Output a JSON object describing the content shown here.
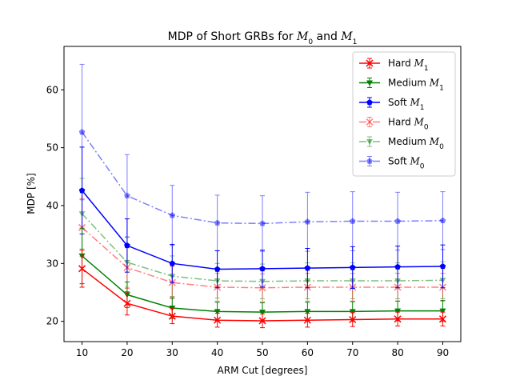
{
  "chart_data": {
    "type": "line",
    "title": {
      "text": "MDP of Short GRBs for ",
      "m0": "M",
      "m0_sub": "0",
      "and": " and ",
      "m1": "M",
      "m1_sub": "1"
    },
    "xlabel": "ARM Cut [degrees]",
    "ylabel": "MDP [%]",
    "xlim": [
      6,
      94
    ],
    "ylim": [
      16.5,
      67.5
    ],
    "xticks": [
      10,
      20,
      30,
      40,
      50,
      60,
      70,
      80,
      90
    ],
    "yticks": [
      20,
      30,
      40,
      50,
      60
    ],
    "grid": false,
    "legend_position": "upper right",
    "x": [
      10,
      20,
      30,
      40,
      50,
      60,
      70,
      80,
      90
    ],
    "series": [
      {
        "name": "Hard ",
        "name_var": "M",
        "name_sub": "1",
        "color": "#ff0000",
        "linestyle": "solid",
        "alpha": 1.0,
        "marker": "x",
        "values": [
          29.1,
          23.1,
          20.9,
          20.2,
          20.1,
          20.2,
          20.3,
          20.4,
          20.4
        ],
        "errors": [
          3.2,
          2.0,
          1.3,
          1.2,
          1.2,
          1.2,
          1.2,
          1.2,
          1.2
        ]
      },
      {
        "name": "Medium ",
        "name_var": "M",
        "name_sub": "1",
        "color": "#008000",
        "linestyle": "solid",
        "alpha": 1.0,
        "marker": "triangle",
        "values": [
          31.3,
          24.6,
          22.3,
          21.7,
          21.6,
          21.7,
          21.7,
          21.8,
          21.8
        ],
        "errors": [
          4.8,
          2.2,
          1.8,
          1.6,
          1.6,
          1.6,
          1.7,
          1.7,
          1.8
        ]
      },
      {
        "name": "Soft ",
        "name_var": "M",
        "name_sub": "1",
        "color": "#0000ff",
        "linestyle": "solid",
        "alpha": 1.0,
        "marker": "pentagon",
        "values": [
          42.6,
          33.1,
          30.0,
          29.0,
          29.1,
          29.2,
          29.3,
          29.4,
          29.5
        ],
        "errors": [
          7.5,
          4.6,
          3.3,
          3.2,
          3.2,
          3.4,
          3.6,
          3.6,
          3.7
        ]
      },
      {
        "name": "Hard ",
        "name_var": "M",
        "name_sub": "0",
        "color": "#ff0000",
        "linestyle": "dashdot",
        "alpha": 0.5,
        "marker": "x",
        "values": [
          36.2,
          29.3,
          26.7,
          25.9,
          25.8,
          25.9,
          25.9,
          25.9,
          25.9
        ],
        "errors": [
          5.0,
          3.6,
          2.8,
          2.4,
          2.4,
          2.4,
          2.4,
          2.4,
          2.4
        ]
      },
      {
        "name": "Medium ",
        "name_var": "M",
        "name_sub": "0",
        "color": "#008000",
        "linestyle": "dashdot",
        "alpha": 0.5,
        "marker": "triangle",
        "values": [
          38.6,
          30.2,
          27.8,
          27.0,
          26.9,
          27.0,
          27.0,
          27.0,
          27.1
        ],
        "errors": [
          6.1,
          4.3,
          3.5,
          3.0,
          3.0,
          3.1,
          3.1,
          3.1,
          3.2
        ]
      },
      {
        "name": "Soft ",
        "name_var": "M",
        "name_sub": "0",
        "color": "#0000ff",
        "linestyle": "dashdot",
        "alpha": 0.5,
        "marker": "pentagon",
        "values": [
          52.7,
          41.7,
          38.3,
          37.0,
          36.9,
          37.2,
          37.3,
          37.3,
          37.4
        ],
        "errors": [
          11.7,
          7.1,
          5.2,
          4.8,
          4.8,
          5.1,
          5.1,
          5.0,
          5.0
        ]
      }
    ]
  }
}
